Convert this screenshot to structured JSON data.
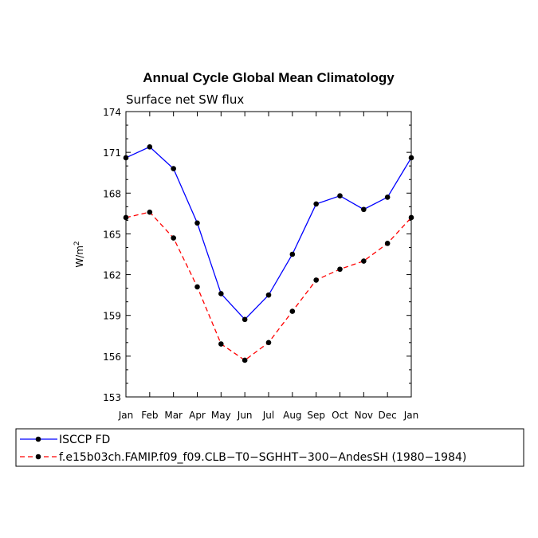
{
  "chart_data": {
    "type": "line",
    "title": "Annual Cycle Global Mean Climatology",
    "subtitle": "Surface net SW flux",
    "xlabel": "",
    "ylabel": "W/m",
    "ylabel_sup": "2",
    "ylim": [
      153,
      174
    ],
    "yticks": [
      153,
      156,
      159,
      162,
      165,
      168,
      171,
      174
    ],
    "categories": [
      "Jan",
      "Feb",
      "Mar",
      "Apr",
      "May",
      "Jun",
      "Jul",
      "Aug",
      "Sep",
      "Oct",
      "Nov",
      "Dec",
      "Jan"
    ],
    "series": [
      {
        "name": "ISCCP FD",
        "color": "#0000ff",
        "dash": "solid",
        "values": [
          170.6,
          171.4,
          169.8,
          165.8,
          160.6,
          158.7,
          160.5,
          163.5,
          167.2,
          167.8,
          166.8,
          167.7,
          170.6
        ]
      },
      {
        "name": "f.e15b03ch.FAMIP.f09_f09.CLB−T0−SGHHT−300−AndesSH (1980−1984)",
        "color": "#ff0000",
        "dash": "dashed",
        "values": [
          166.2,
          166.6,
          164.7,
          161.1,
          156.9,
          155.7,
          157.0,
          159.3,
          161.6,
          162.4,
          163.0,
          164.3,
          166.2
        ]
      }
    ],
    "legend_position": "bottom"
  }
}
